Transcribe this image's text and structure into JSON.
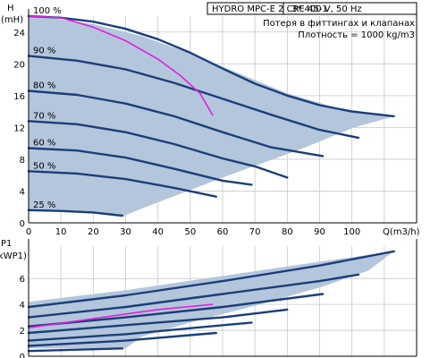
{
  "header": {
    "model": "HYDRO MPC-E 2 CRE 45-1",
    "supply": "3* 400 V, 50 Hz",
    "note_line1": "Потеря в фиттингах и клапанах",
    "note_line2": "Плотность = 1000 kg/m3"
  },
  "chart_data": [
    {
      "type": "line",
      "ylabel_top": "H",
      "ylabel": "(mH)",
      "xlabel": "Q(m3/h)",
      "xlim": [
        0,
        120
      ],
      "ylim": [
        0,
        26
      ],
      "xticks": [
        0,
        10,
        20,
        30,
        40,
        50,
        60,
        70,
        80,
        90,
        100
      ],
      "yticks": [
        0,
        4,
        8,
        12,
        16,
        20,
        24
      ],
      "grid": true,
      "envelope": [
        [
          0,
          25.9
        ],
        [
          8,
          25.7
        ],
        [
          20,
          25.0
        ],
        [
          35,
          23.5
        ],
        [
          50,
          21.3
        ],
        [
          65,
          18.8
        ],
        [
          80,
          16.3
        ],
        [
          95,
          14.5
        ],
        [
          106,
          13.8
        ],
        [
          113,
          13.4
        ],
        [
          100,
          11.9
        ],
        [
          85,
          9.4
        ],
        [
          60,
          5.7
        ],
        [
          35,
          1.8
        ],
        [
          29,
          0.8
        ],
        [
          20,
          1.2
        ],
        [
          0,
          1.5
        ]
      ],
      "series": [
        {
          "label": "100 %",
          "points": [
            [
              0,
              26.0
            ],
            [
              10,
              25.8
            ],
            [
              20,
              25.3
            ],
            [
              30,
              24.4
            ],
            [
              40,
              23.1
            ],
            [
              50,
              21.4
            ],
            [
              60,
              19.4
            ],
            [
              70,
              17.5
            ],
            [
              80,
              16.0
            ],
            [
              90,
              14.8
            ],
            [
              100,
              14.0
            ],
            [
              113,
              13.4
            ]
          ]
        },
        {
          "label": "90 %",
          "points": [
            [
              0,
              21.0
            ],
            [
              15,
              20.4
            ],
            [
              30,
              19.3
            ],
            [
              45,
              17.6
            ],
            [
              60,
              15.6
            ],
            [
              75,
              13.6
            ],
            [
              90,
              11.7
            ],
            [
              102,
              10.7
            ]
          ]
        },
        {
          "label": "80 %",
          "points": [
            [
              0,
              16.6
            ],
            [
              15,
              16.1
            ],
            [
              30,
              15.0
            ],
            [
              45,
              13.4
            ],
            [
              60,
              11.4
            ],
            [
              75,
              9.5
            ],
            [
              91,
              8.4
            ]
          ]
        },
        {
          "label": "70 %",
          "points": [
            [
              0,
              12.8
            ],
            [
              15,
              12.4
            ],
            [
              30,
              11.4
            ],
            [
              45,
              9.9
            ],
            [
              60,
              8.1
            ],
            [
              70,
              7.1
            ],
            [
              80,
              5.7
            ]
          ]
        },
        {
          "label": "60 %",
          "points": [
            [
              0,
              9.4
            ],
            [
              15,
              9.1
            ],
            [
              30,
              8.2
            ],
            [
              45,
              6.8
            ],
            [
              60,
              5.3
            ],
            [
              69,
              4.8
            ]
          ]
        },
        {
          "label": "50 %",
          "points": [
            [
              0,
              6.5
            ],
            [
              15,
              6.2
            ],
            [
              30,
              5.5
            ],
            [
              45,
              4.4
            ],
            [
              58,
              3.3
            ]
          ]
        },
        {
          "label": "25 %",
          "points": [
            [
              0,
              1.6
            ],
            [
              10,
              1.5
            ],
            [
              20,
              1.3
            ],
            [
              29,
              0.9
            ]
          ]
        }
      ],
      "system_curve": {
        "color": "#e020e0",
        "points": [
          [
            0,
            26.0
          ],
          [
            10,
            25.8
          ],
          [
            20,
            24.6
          ],
          [
            30,
            22.9
          ],
          [
            40,
            20.6
          ],
          [
            47,
            18.5
          ],
          [
            53,
            16.3
          ],
          [
            57,
            13.5
          ]
        ]
      }
    },
    {
      "type": "line",
      "ylabel_top": "P1",
      "ylabel": "(kWP1)",
      "xlim": [
        0,
        120
      ],
      "ylim": [
        0,
        8.5
      ],
      "yticks": [
        0,
        2,
        4,
        6
      ],
      "grid": true,
      "envelope": [
        [
          0,
          4.2
        ],
        [
          30,
          5.1
        ],
        [
          60,
          6.2
        ],
        [
          90,
          7.3
        ],
        [
          110,
          8.0
        ],
        [
          113,
          8.1
        ],
        [
          105,
          6.6
        ],
        [
          90,
          5.3
        ],
        [
          70,
          3.9
        ],
        [
          50,
          2.6
        ],
        [
          35,
          1.5
        ],
        [
          30,
          0.6
        ],
        [
          0,
          0.6
        ]
      ],
      "series": [
        {
          "label": "100 %",
          "points": [
            [
              0,
              3.8
            ],
            [
              30,
              4.7
            ],
            [
              60,
              5.8
            ],
            [
              90,
              7.0
            ],
            [
              113,
              8.1
            ]
          ]
        },
        {
          "label": "90 %",
          "points": [
            [
              0,
              3.0
            ],
            [
              30,
              3.8
            ],
            [
              60,
              4.8
            ],
            [
              90,
              5.8
            ],
            [
              102,
              6.3
            ]
          ]
        },
        {
          "label": "80 %",
          "points": [
            [
              0,
              2.3
            ],
            [
              30,
              3.0
            ],
            [
              60,
              3.8
            ],
            [
              91,
              4.8
            ]
          ]
        },
        {
          "label": "70 %",
          "points": [
            [
              0,
              1.8
            ],
            [
              30,
              2.4
            ],
            [
              60,
              3.0
            ],
            [
              80,
              3.6
            ]
          ]
        },
        {
          "label": "60 %",
          "points": [
            [
              0,
              1.2
            ],
            [
              30,
              1.7
            ],
            [
              69,
              2.6
            ]
          ]
        },
        {
          "label": "50 %",
          "points": [
            [
              0,
              0.8
            ],
            [
              30,
              1.2
            ],
            [
              58,
              1.8
            ]
          ]
        },
        {
          "label": "25 %",
          "points": [
            [
              0,
              0.4
            ],
            [
              29,
              0.6
            ]
          ]
        }
      ],
      "system_curve": {
        "color": "#e020e0",
        "points": [
          [
            0,
            2.2
          ],
          [
            20,
            2.9
          ],
          [
            40,
            3.6
          ],
          [
            57,
            4.0
          ]
        ]
      }
    }
  ]
}
